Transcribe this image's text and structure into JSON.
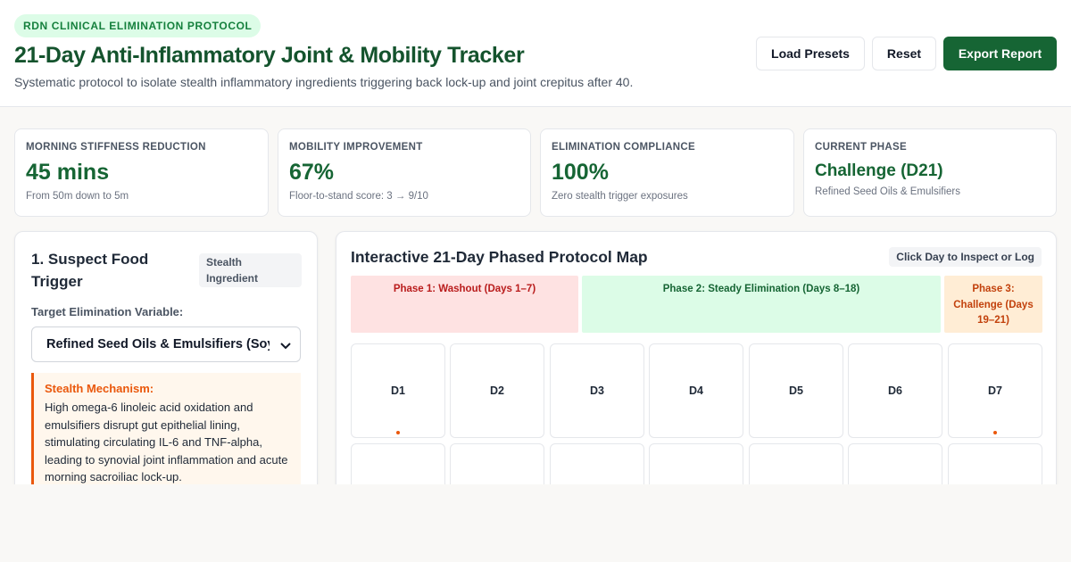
{
  "header": {
    "badge": "RDN CLINICAL ELIMINATION PROTOCOL",
    "title": "21-Day Anti-Inflammatory Joint & Mobility Tracker",
    "subtitle": "Systematic protocol to isolate stealth inflammatory ingredients triggering back lock-up and joint crepitus after 40.",
    "buttons": {
      "load_presets": "Load Presets",
      "reset": "Reset",
      "export": "Export Report"
    }
  },
  "stats": [
    {
      "label": "MORNING STIFFNESS REDUCTION",
      "value": "45 mins",
      "note": "From 50m down to 5m"
    },
    {
      "label": "MOBILITY IMPROVEMENT",
      "value": "67%",
      "note": "Floor-to-stand score: 3 → 9/10"
    },
    {
      "label": "ELIMINATION COMPLIANCE",
      "value": "100%",
      "note": "Zero stealth trigger exposures"
    },
    {
      "label": "CURRENT PHASE",
      "value": "Challenge (D21)",
      "note": "Refined Seed Oils & Emulsifiers"
    }
  ],
  "trigger_panel": {
    "title": "1. Suspect Food Trigger",
    "tag": "Stealth Ingredient",
    "field_label": "Target Elimination Variable:",
    "selected": "Refined Seed Oils & Emulsifiers (Soy/Canola)",
    "mechanism_title": "Stealth Mechanism:",
    "mechanism_text": "High omega-6 linoleic acid oxidation and emulsifiers disrupt gut epithelial lining, stimulating circulating IL-6 and TNF-alpha, leading to synovial joint inflammation and acute morning sacroiliac lock-up."
  },
  "protocol_map": {
    "title": "Interactive 21-Day Phased Protocol Map",
    "hint": "Click Day to Inspect or Log",
    "phases": [
      {
        "label": "Phase 1: Washout (Days 1–7)"
      },
      {
        "label": "Phase 2: Steady Elimination (Days 8–18)"
      },
      {
        "label": "Phase 3: Challenge (Days 19–21)"
      }
    ],
    "days": [
      {
        "label": "D1",
        "logged": true
      },
      {
        "label": "D2",
        "logged": false
      },
      {
        "label": "D3",
        "logged": false
      },
      {
        "label": "D4",
        "logged": false
      },
      {
        "label": "D5",
        "logged": false
      },
      {
        "label": "D6",
        "logged": false
      },
      {
        "label": "D7",
        "logged": true
      }
    ]
  },
  "colors": {
    "brand": "#166534",
    "accent_warning": "#ea580c",
    "phase_1": "#fee2e2",
    "phase_2": "#dcfce7",
    "phase_3": "#ffedd5"
  }
}
